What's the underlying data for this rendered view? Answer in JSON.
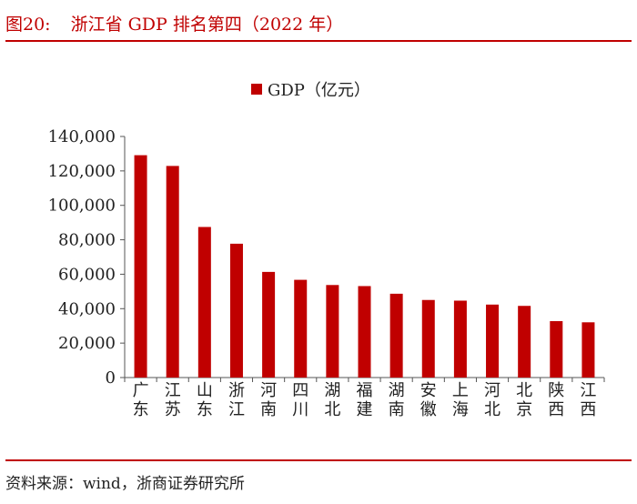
{
  "figure": {
    "label": "图20:",
    "title": "浙江省 GDP 排名第四（2022 年）",
    "source": "资料来源：wind，浙商证券研究所"
  },
  "colors": {
    "accent": "#c00000",
    "bar": "#c00000",
    "text": "#222222"
  },
  "chart_data": {
    "type": "bar",
    "title": "",
    "legend_label": "GDP（亿元）",
    "legend_position": "top-center",
    "xlabel": "",
    "ylabel": "",
    "ylim": [
      0,
      140000
    ],
    "yticks": [
      0,
      20000,
      40000,
      60000,
      80000,
      100000,
      120000,
      140000
    ],
    "ytick_labels": [
      "0",
      "20,000",
      "40,000",
      "60,000",
      "80,000",
      "100,000",
      "120,000",
      "140,000"
    ],
    "categories": [
      "广东",
      "江苏",
      "山东",
      "浙江",
      "河南",
      "四川",
      "湖北",
      "福建",
      "湖南",
      "安徽",
      "上海",
      "河北",
      "北京",
      "陕西",
      "江西"
    ],
    "values": [
      129119,
      122876,
      87435,
      77715,
      61345,
      56750,
      53735,
      53110,
      48670,
      45045,
      44653,
      42370,
      41611,
      32773,
      32075
    ],
    "grid": false
  }
}
